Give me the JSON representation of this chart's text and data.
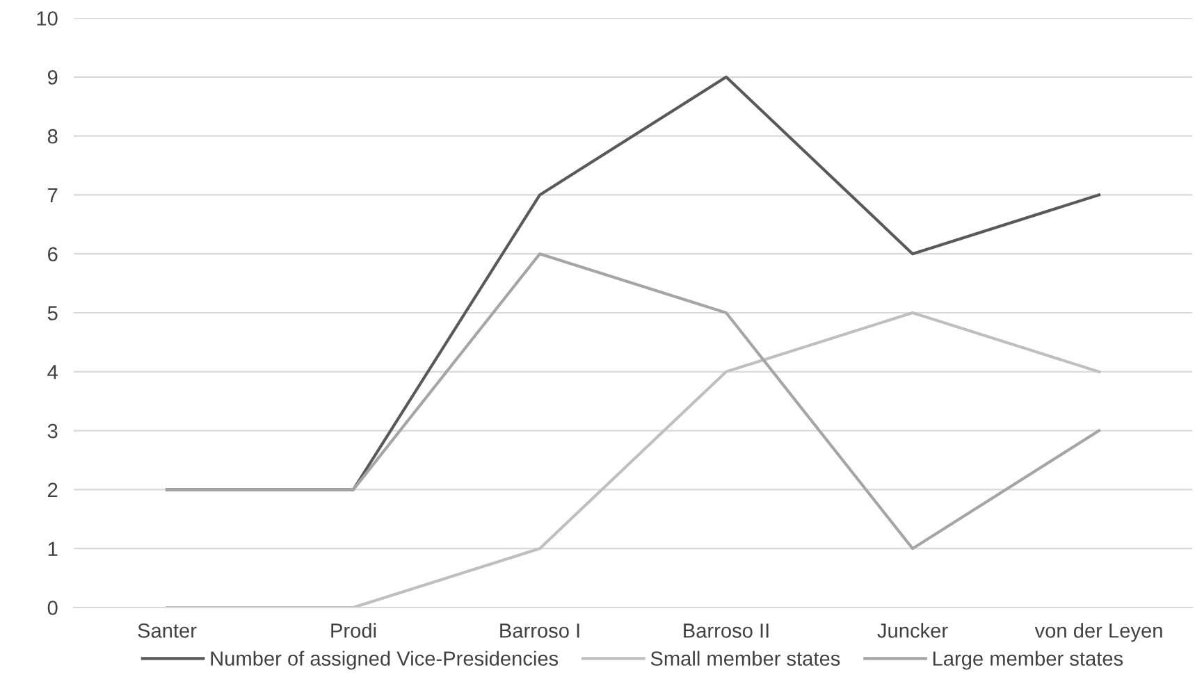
{
  "chart_data": {
    "type": "line",
    "categories": [
      "Santer",
      "Prodi",
      "Barroso I",
      "Barroso II",
      "Juncker",
      "von der Leyen"
    ],
    "series": [
      {
        "name": "Number of assigned Vice-Presidencies",
        "color": "#595959",
        "values": [
          2,
          2,
          7,
          9,
          6,
          7
        ]
      },
      {
        "name": "Small member states",
        "color": "#bfbfbf",
        "values": [
          0,
          0,
          1,
          4,
          5,
          4
        ]
      },
      {
        "name": "Large member states",
        "color": "#a5a5a5",
        "values": [
          2,
          2,
          6,
          5,
          1,
          3
        ]
      }
    ],
    "ylim": [
      0,
      10
    ],
    "yticks": [
      0,
      1,
      2,
      3,
      4,
      5,
      6,
      7,
      8,
      9,
      10
    ],
    "grid": "y",
    "legend": "bottom",
    "marker": "none",
    "line_style": "solid"
  }
}
